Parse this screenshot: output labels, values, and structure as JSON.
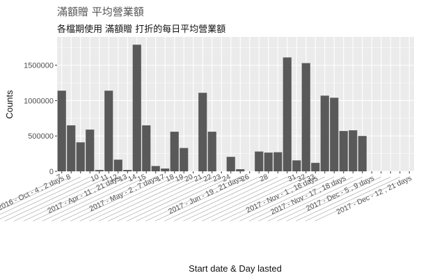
{
  "chart_data": {
    "type": "bar",
    "title": "滿額贈 平均營業額",
    "subtitle": "各檔期使用 滿額贈 打折的每日平均營業額",
    "xlabel": "Start date & Day lasted",
    "ylabel": "Counts",
    "ylim": [
      0,
      1900000
    ],
    "yticks": [
      0,
      500000,
      1000000,
      1500000
    ],
    "ytick_labels": [
      "0",
      "500000",
      "1000000",
      "1500000"
    ],
    "grid": true,
    "legend": "none",
    "bar_color": "#595959",
    "panel_color": "#ebebeb",
    "categories": [
      "7",
      "8",
      "",
      "",
      "10",
      "11",
      "12",
      "13",
      "14",
      "15",
      "",
      "17",
      "18",
      "19",
      "20",
      "21",
      "22",
      "23",
      "24",
      "",
      "26",
      "",
      "28",
      "",
      "",
      "31",
      "32",
      "33",
      "",
      "",
      "",
      "",
      "",
      "",
      "",
      "",
      "",
      ""
    ],
    "long_labels": [
      {
        "index": 0,
        "text": "2016 - Oct - 4 , 2 days"
      },
      {
        "index": 6,
        "text": "2017 - Apr - 11 , 21 days"
      },
      {
        "index": 10,
        "text": "2017 - May - 2 , 7 days"
      },
      {
        "index": 19,
        "text": "2017 - Jun - 19 , 21 days"
      },
      {
        "index": 27,
        "text": "2017 - Nov - 1 , 16 days"
      },
      {
        "index": 30,
        "text": "2017 - Nov - 17 , 18 days"
      },
      {
        "index": 33,
        "text": "2017 - Dec - 5 , 9 days"
      },
      {
        "index": 37,
        "text": "2017 - Dec - 12 , 21 days"
      }
    ],
    "values": [
      1140000,
      650000,
      410000,
      590000,
      20000,
      1140000,
      165000,
      20000,
      1790000,
      650000,
      75000,
      40000,
      560000,
      330000,
      0,
      1110000,
      560000,
      0,
      205000,
      30000,
      0,
      280000,
      265000,
      270000,
      1610000,
      155000,
      1530000,
      120000,
      1070000,
      1040000,
      570000,
      580000,
      500000,
      0,
      0,
      0,
      0,
      0
    ]
  }
}
